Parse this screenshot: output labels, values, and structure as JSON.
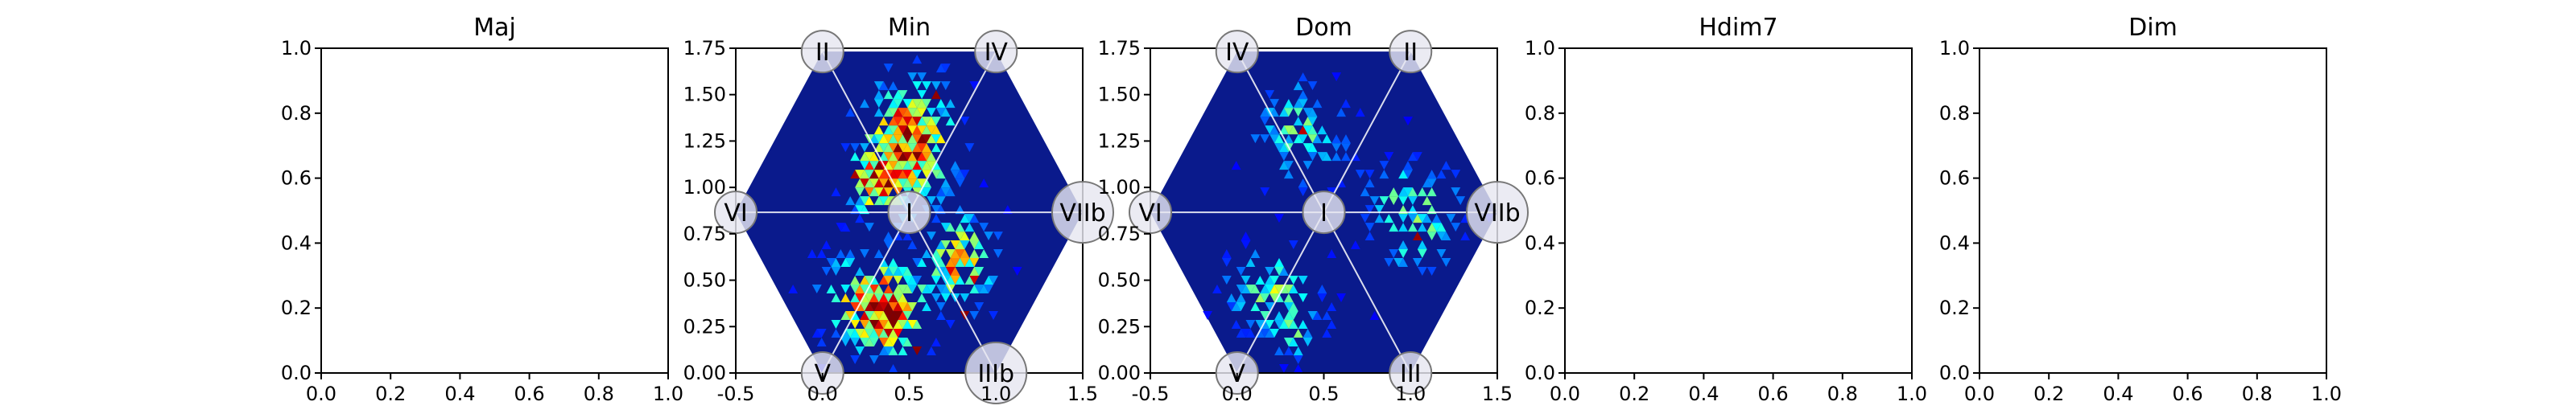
{
  "chart_data": [
    {
      "type": "scatter",
      "title": "Maj",
      "xlim": [
        0.0,
        1.0
      ],
      "ylim": [
        0.0,
        1.0
      ],
      "xticks": [
        "0.0",
        "0.2",
        "0.4",
        "0.6",
        "0.8",
        "1.0"
      ],
      "yticks": [
        "0.0",
        "0.2",
        "0.4",
        "0.6",
        "0.8",
        "1.0"
      ],
      "grid": false
    },
    {
      "type": "heatmap",
      "title": "Min",
      "xlim": [
        -0.5,
        1.5
      ],
      "ylim": [
        0.0,
        1.75
      ],
      "xticks": [
        "-0.5",
        "0.0",
        "0.5",
        "1.0",
        "1.5"
      ],
      "yticks": [
        "0.00",
        "0.25",
        "0.50",
        "0.75",
        "1.00",
        "1.25",
        "1.50",
        "1.75"
      ],
      "colormap": "jet",
      "background": "#0a1a8c",
      "hexagon_vertices": [
        [
          0.0,
          1.732
        ],
        [
          1.0,
          1.732
        ],
        [
          1.5,
          0.866
        ],
        [
          1.0,
          0.0
        ],
        [
          0.0,
          0.0
        ],
        [
          -0.5,
          0.866
        ]
      ],
      "nodes": [
        {
          "label": "II",
          "x": 0.0,
          "y": 1.732
        },
        {
          "label": "IV",
          "x": 1.0,
          "y": 1.732
        },
        {
          "label": "VIIb",
          "x": 1.5,
          "y": 0.866
        },
        {
          "label": "IIIb",
          "x": 1.0,
          "y": 0.0
        },
        {
          "label": "V",
          "x": 0.0,
          "y": 0.0
        },
        {
          "label": "VI",
          "x": -0.5,
          "y": 0.866
        },
        {
          "label": "I",
          "x": 0.5,
          "y": 0.866
        }
      ],
      "hotspots": [
        {
          "x": 0.5,
          "y": 1.25,
          "sx": 0.16,
          "sy": 0.2,
          "w": 1.0
        },
        {
          "x": 0.3,
          "y": 1.02,
          "sx": 0.1,
          "sy": 0.1,
          "w": 0.8
        },
        {
          "x": 0.8,
          "y": 0.6,
          "sx": 0.12,
          "sy": 0.16,
          "w": 0.7
        },
        {
          "x": 0.3,
          "y": 0.4,
          "sx": 0.18,
          "sy": 0.16,
          "w": 0.85
        },
        {
          "x": 0.4,
          "y": 0.25,
          "sx": 0.1,
          "sy": 0.1,
          "w": 0.6
        }
      ]
    },
    {
      "type": "heatmap",
      "title": "Dom",
      "xlim": [
        -0.5,
        1.5
      ],
      "ylim": [
        0.0,
        1.75
      ],
      "xticks": [
        "-0.5",
        "0.0",
        "0.5",
        "1.0",
        "1.5"
      ],
      "yticks": [
        "0.00",
        "0.25",
        "0.50",
        "0.75",
        "1.00",
        "1.25",
        "1.50",
        "1.75"
      ],
      "colormap": "jet",
      "background": "#0a1a8c",
      "hexagon_vertices": [
        [
          0.0,
          1.732
        ],
        [
          1.0,
          1.732
        ],
        [
          1.5,
          0.866
        ],
        [
          1.0,
          0.0
        ],
        [
          0.0,
          0.0
        ],
        [
          -0.5,
          0.866
        ]
      ],
      "nodes": [
        {
          "label": "IV",
          "x": 0.0,
          "y": 1.732
        },
        {
          "label": "II",
          "x": 1.0,
          "y": 1.732
        },
        {
          "label": "VIIb",
          "x": 1.5,
          "y": 0.866
        },
        {
          "label": "III",
          "x": 1.0,
          "y": 0.0
        },
        {
          "label": "V",
          "x": 0.0,
          "y": 0.0
        },
        {
          "label": "VI",
          "x": -0.5,
          "y": 0.866
        },
        {
          "label": "I",
          "x": 0.5,
          "y": 0.866
        }
      ],
      "hotspots": [
        {
          "x": 0.35,
          "y": 1.3,
          "sx": 0.16,
          "sy": 0.16,
          "w": 0.5
        },
        {
          "x": 1.0,
          "y": 0.95,
          "sx": 0.18,
          "sy": 0.12,
          "w": 0.45
        },
        {
          "x": 1.05,
          "y": 0.7,
          "sx": 0.14,
          "sy": 0.1,
          "w": 0.4
        },
        {
          "x": 0.2,
          "y": 0.45,
          "sx": 0.16,
          "sy": 0.14,
          "w": 0.5
        },
        {
          "x": 0.35,
          "y": 0.2,
          "sx": 0.1,
          "sy": 0.08,
          "w": 0.35
        }
      ]
    },
    {
      "type": "scatter",
      "title": "Hdim7",
      "xlim": [
        0.0,
        1.0
      ],
      "ylim": [
        0.0,
        1.0
      ],
      "xticks": [
        "0.0",
        "0.2",
        "0.4",
        "0.6",
        "0.8",
        "1.0"
      ],
      "yticks": [
        "0.0",
        "0.2",
        "0.4",
        "0.6",
        "0.8",
        "1.0"
      ],
      "grid": false
    },
    {
      "type": "scatter",
      "title": "Dim",
      "xlim": [
        0.0,
        1.0
      ],
      "ylim": [
        0.0,
        1.0
      ],
      "xticks": [
        "0.0",
        "0.2",
        "0.4",
        "0.6",
        "0.8",
        "1.0"
      ],
      "yticks": [
        "0.0",
        "0.2",
        "0.4",
        "0.6",
        "0.8",
        "1.0"
      ],
      "grid": false
    }
  ]
}
